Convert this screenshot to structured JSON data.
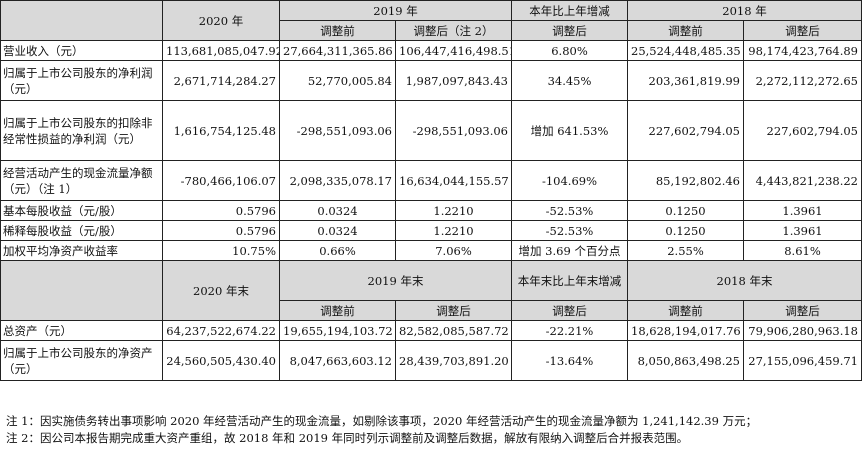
{
  "header": {
    "col_2020": "2020 年",
    "col_2019": "2019 年",
    "col_yoy": "本年比上年增减",
    "col_2018": "2018 年",
    "before": "调整前",
    "after_note2": "调整后（注 2）",
    "after": "调整后"
  },
  "rows": [
    {
      "label": "营业收入（元）",
      "v2020": "113,681,085,047.92",
      "v2019_before": "27,664,311,365.86",
      "v2019_after": "106,447,416,498.51",
      "yoy": "6.80%",
      "v2018_before": "25,524,448,485.35",
      "v2018_after": "98,174,423,764.89"
    },
    {
      "label": "归属于上市公司股东的净利润（元）",
      "v2020": "2,671,714,284.27",
      "v2019_before": "52,770,005.84",
      "v2019_after": "1,987,097,843.43",
      "yoy": "34.45%",
      "v2018_before": "203,361,819.99",
      "v2018_after": "2,272,112,272.65"
    },
    {
      "label": "归属于上市公司股东的扣除非经常性损益的净利润（元）",
      "v2020": "1,616,754,125.48",
      "v2019_before": "-298,551,093.06",
      "v2019_after": "-298,551,093.06",
      "yoy": "增加 641.53%",
      "v2018_before": "227,602,794.05",
      "v2018_after": "227,602,794.05"
    },
    {
      "label": "经营活动产生的现金流量净额（元）（注 1）",
      "v2020": "-780,466,106.07",
      "v2019_before": "2,098,335,078.17",
      "v2019_after": "16,634,044,155.57",
      "yoy": "-104.69%",
      "v2018_before": "85,192,802.46",
      "v2018_after": "4,443,821,238.22"
    },
    {
      "label": "基本每股收益（元/股）",
      "v2020": "0.5796",
      "v2019_before": "0.0324",
      "v2019_after": "1.2210",
      "yoy": "-52.53%",
      "v2018_before": "0.1250",
      "v2018_after": "1.3961"
    },
    {
      "label": "稀释每股收益（元/股）",
      "v2020": "0.5796",
      "v2019_before": "0.0324",
      "v2019_after": "1.2210",
      "yoy": "-52.53%",
      "v2018_before": "0.1250",
      "v2018_after": "1.3961"
    },
    {
      "label": "加权平均净资产收益率",
      "v2020": "10.75%",
      "v2019_before": "0.66%",
      "v2019_after": "7.06%",
      "yoy": "增加 3.69 个百分点",
      "v2018_before": "2.55%",
      "v2018_after": "8.61%"
    }
  ],
  "header2": {
    "col_2020": "2020 年末",
    "col_2019": "2019 年末",
    "col_yoy": "本年末比上年末增减",
    "col_2018": "2018 年末",
    "before": "调整前",
    "after": "调整后"
  },
  "rows2": [
    {
      "label": "总资产（元）",
      "v2020": "64,237,522,674.22",
      "v2019_before": "19,655,194,103.72",
      "v2019_after": "82,582,085,587.72",
      "yoy": "-22.21%",
      "v2018_before": "18,628,194,017.76",
      "v2018_after": "79,906,280,963.18"
    },
    {
      "label": "归属于上市公司股东的净资产（元）",
      "v2020": "24,560,505,430.40",
      "v2019_before": "8,047,663,603.12",
      "v2019_after": "28,439,703,891.20",
      "yoy": "-13.64%",
      "v2018_before": "8,050,863,498.25",
      "v2018_after": "27,155,096,459.71"
    }
  ],
  "notes": [
    "注 1：因实施债务转出事项影响 2020 年经营活动产生的现金流量，如剔除该事项，2020 年经营活动产生的现金流量净额为 1,241,142.39 万元；",
    "注 2：因公司本报告期完成重大资产重组，故 2018 年和 2019 年同时列示调整前及调整后数据，解放有限纳入调整后合并报表范围。"
  ]
}
